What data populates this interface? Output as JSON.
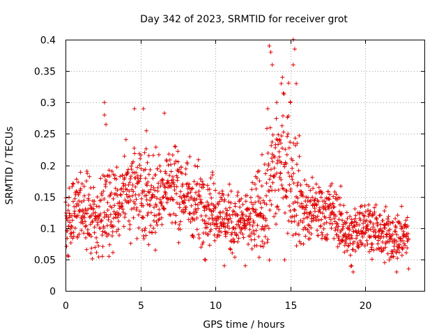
{
  "chart_data": {
    "type": "scatter",
    "title": "Day 342 of 2023, SRMTID for receiver grot",
    "xlabel": "GPS time / hours",
    "ylabel": "SRMTID / TECUs",
    "xlim": [
      0,
      24
    ],
    "ylim": [
      0,
      0.4
    ],
    "xticks": [
      0,
      5,
      10,
      15,
      20
    ],
    "xtick_labels": [
      "0",
      "5",
      "10",
      "15",
      "20"
    ],
    "yticks": [
      0,
      0.05,
      0.1,
      0.15,
      0.2,
      0.25,
      0.3,
      0.35,
      0.4
    ],
    "ytick_labels": [
      "0",
      "0.05",
      "0.1",
      "0.15",
      "0.2",
      "0.25",
      "0.3",
      "0.35",
      "0.4"
    ],
    "grid": true,
    "marker": "plus",
    "color": "#e00000",
    "trend": {
      "x": [
        0,
        1,
        2,
        3,
        4,
        5,
        6,
        7,
        8,
        9,
        10,
        11,
        12,
        13,
        13.5,
        14,
        14.5,
        15,
        15.5,
        16,
        17,
        18,
        19,
        20,
        21,
        22,
        22.8
      ],
      "y": [
        0.11,
        0.13,
        0.12,
        0.13,
        0.16,
        0.16,
        0.15,
        0.17,
        0.15,
        0.14,
        0.13,
        0.11,
        0.11,
        0.12,
        0.15,
        0.2,
        0.21,
        0.2,
        0.16,
        0.12,
        0.13,
        0.12,
        0.085,
        0.11,
        0.09,
        0.085,
        0.09
      ]
    },
    "spread": {
      "x": [
        0,
        3,
        5,
        8,
        10,
        12,
        13.5,
        14.5,
        15.5,
        16,
        18,
        20,
        22.8
      ],
      "y": [
        0.035,
        0.045,
        0.05,
        0.045,
        0.035,
        0.03,
        0.06,
        0.08,
        0.06,
        0.035,
        0.03,
        0.025,
        0.025
      ]
    },
    "points": [
      [
        2.6,
        0.3
      ],
      [
        2.6,
        0.28
      ],
      [
        2.7,
        0.265
      ],
      [
        4.6,
        0.29
      ],
      [
        5.2,
        0.29
      ],
      [
        5.4,
        0.255
      ],
      [
        6.6,
        0.283
      ],
      [
        13.6,
        0.39
      ],
      [
        13.7,
        0.38
      ],
      [
        13.8,
        0.36
      ],
      [
        15.2,
        0.4
      ],
      [
        15.3,
        0.385
      ],
      [
        15.2,
        0.36
      ],
      [
        14.4,
        0.33
      ],
      [
        15.0,
        0.3
      ],
      [
        15.4,
        0.33
      ],
      [
        13.5,
        0.29
      ],
      [
        14.1,
        0.3
      ],
      [
        19.2,
        0.03
      ],
      [
        19.1,
        0.04
      ],
      [
        22.1,
        0.03
      ],
      [
        10.6,
        0.04
      ],
      [
        21.3,
        0.045
      ],
      [
        22.9,
        0.035
      ],
      [
        0.2,
        0.055
      ],
      [
        9.3,
        0.05
      ],
      [
        6.0,
        0.065
      ],
      [
        12.0,
        0.04
      ],
      [
        1.7,
        0.06
      ],
      [
        2.9,
        0.055
      ]
    ]
  }
}
